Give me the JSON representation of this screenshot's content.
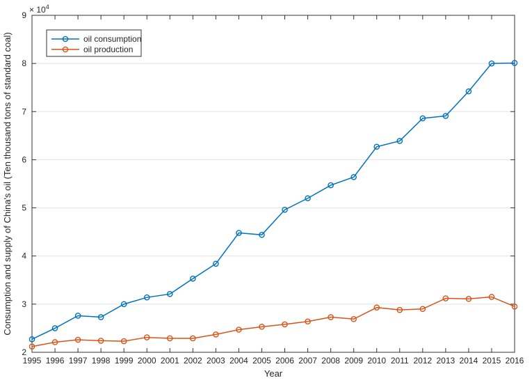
{
  "chart_data": {
    "type": "line",
    "title": "",
    "xlabel": "Year",
    "ylabel": "Consumption and supply of China's oil (Ten thousand tons of standard coal)",
    "y_exponent": {
      "base": "× 10",
      "exp": "4"
    },
    "x": [
      1995,
      1996,
      1997,
      1998,
      1999,
      2000,
      2001,
      2002,
      2003,
      2004,
      2005,
      2006,
      2007,
      2008,
      2009,
      2010,
      2011,
      2012,
      2013,
      2014,
      2015,
      2016
    ],
    "series": [
      {
        "name": "oil consumption",
        "color": "#0072BD",
        "marker": "circle",
        "values": [
          2.27,
          2.5,
          2.76,
          2.73,
          3.0,
          3.14,
          3.21,
          3.53,
          3.84,
          4.48,
          4.44,
          4.96,
          5.2,
          5.47,
          5.64,
          6.27,
          6.39,
          6.86,
          6.91,
          7.42,
          8.0,
          8.01
        ]
      },
      {
        "name": "oil production",
        "color": "#D95319",
        "marker": "circle",
        "values": [
          2.12,
          2.21,
          2.26,
          2.24,
          2.23,
          2.31,
          2.29,
          2.29,
          2.37,
          2.47,
          2.53,
          2.58,
          2.64,
          2.73,
          2.69,
          2.93,
          2.88,
          2.9,
          3.12,
          3.11,
          3.15,
          2.95
        ]
      }
    ],
    "xlim": [
      1995,
      2016
    ],
    "ylim": [
      2,
      9
    ],
    "yticks": [
      2,
      3,
      4,
      5,
      6,
      7,
      8,
      9
    ],
    "grid": "horizontal-only",
    "legend_position": "top-left",
    "colors": {
      "axis": "#333333",
      "grid": "#e2e2e2",
      "background": "#ffffff"
    }
  }
}
